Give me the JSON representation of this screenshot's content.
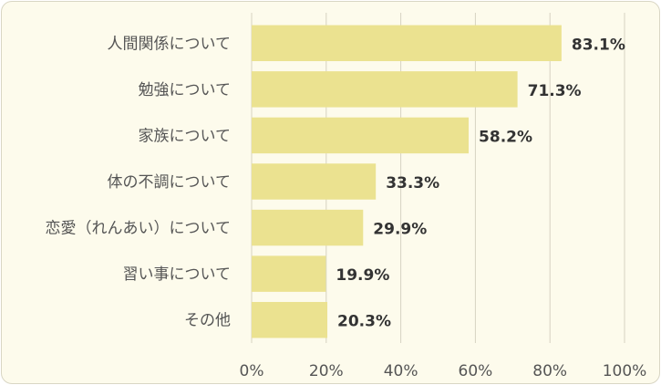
{
  "chart_data": {
    "type": "bar",
    "orientation": "horizontal",
    "categories": [
      "人間関係について",
      "勉強について",
      "家族について",
      "体の不調について",
      "恋愛（れんあい）について",
      "習い事について",
      "その他"
    ],
    "values": [
      83.1,
      71.3,
      58.2,
      33.3,
      29.9,
      19.9,
      20.3
    ],
    "value_labels": [
      "83.1%",
      "71.3%",
      "58.2%",
      "33.3%",
      "29.9%",
      "19.9%",
      "20.3%"
    ],
    "x_ticks": [
      0,
      20,
      40,
      60,
      80,
      100
    ],
    "x_tick_labels": [
      "0%",
      "20%",
      "40%",
      "60%",
      "80%",
      "100%"
    ],
    "xlim": [
      0,
      100
    ],
    "grid": "vertical",
    "title": "",
    "xlabel": "",
    "ylabel": "",
    "colors": {
      "bar": "#ebe290",
      "grid": "#d6d3c2",
      "background": "#fdfbec"
    }
  }
}
